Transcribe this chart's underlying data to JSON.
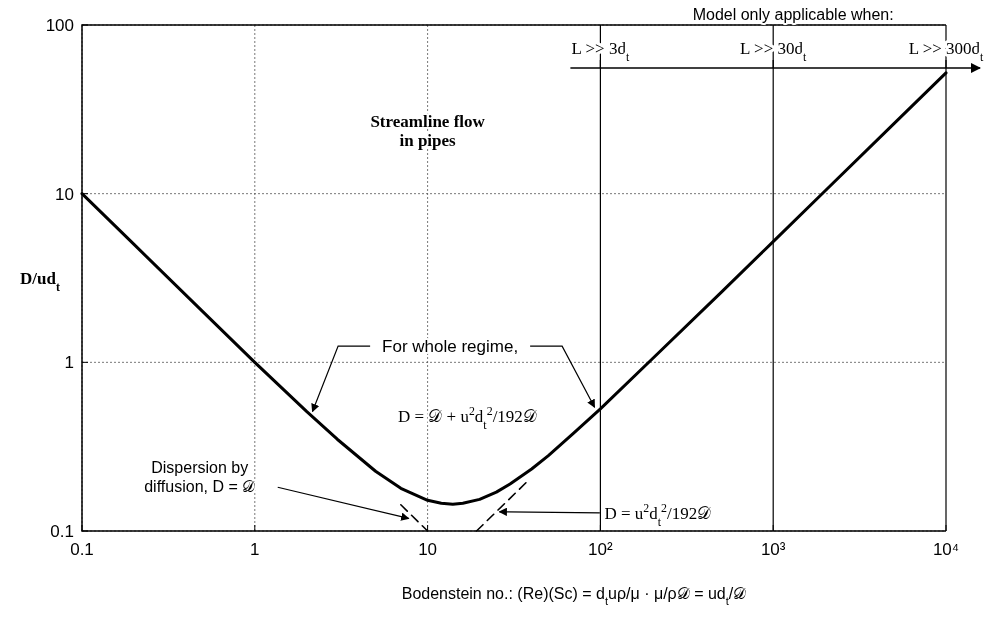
{
  "chart_data": {
    "type": "line",
    "xlabel": "Bodenstein no.: (Re)(Sc) = d$_{t}$uρ/μ · μ/ρ𝒟 = ud$_{t}$/𝒟",
    "ylabel": "D/ud$_{t}$",
    "log": "xy",
    "xlim": [
      0.1,
      10000
    ],
    "ylim": [
      0.1,
      100
    ],
    "xticks": [
      0.1,
      1,
      10,
      {
        "value": 100,
        "label": "10²"
      },
      {
        "value": 1000,
        "label": "10³"
      },
      {
        "value": 10000,
        "label": "10⁴"
      }
    ],
    "yticks": [
      0.1,
      1,
      10,
      100
    ],
    "grid": true,
    "marker": "none",
    "series": [
      {
        "color": "#000000",
        "line_style": "solid",
        "x": [
          0.1,
          0.2,
          0.5,
          1,
          2,
          3,
          5,
          7,
          10,
          12,
          14,
          16,
          20,
          25,
          30,
          40,
          50,
          70,
          100,
          200,
          500,
          1000,
          2000,
          5000,
          10000
        ],
        "values": [
          10,
          5,
          2,
          1.0,
          0.51,
          0.35,
          0.226,
          0.179,
          0.152,
          0.146,
          0.144,
          0.146,
          0.154,
          0.17,
          0.19,
          0.233,
          0.28,
          0.38,
          0.53,
          1.05,
          2.6,
          5.2,
          10.4,
          26,
          52
        ]
      },
      {
        "color": "#000000",
        "line_style": "dashed",
        "x": [
          7,
          10
        ],
        "values": [
          0.143,
          0.1
        ]
      },
      {
        "color": "#000000",
        "line_style": "dashed",
        "x": [
          19.2,
          38
        ],
        "values": [
          0.1,
          0.198
        ]
      }
    ],
    "ref_lines": [
      {
        "axis": "x",
        "value": 100,
        "label": "L >> 3d$_{t}$"
      },
      {
        "axis": "x",
        "value": 1000,
        "label": "L >> 30d$_{t}$"
      },
      {
        "axis": "x",
        "value": 10000,
        "label": "L >> 300d$_{t}$"
      }
    ],
    "annotations": [
      "Streamline flow\nin pipes",
      "Model only applicable when:",
      {
        "text": "For whole regime,",
        "x": 2.1,
        "y": 0.49
      },
      "D = 𝒟 + u$^{2}$d$_{t}$$^{2}$/192𝒟",
      "Dispersion by\ndiffusion, D = 𝒟",
      {
        "text": "D = u$^{2}$d$_{t}$$^{2}$/192𝒟",
        "x": 25,
        "y": 0.13
      }
    ]
  }
}
